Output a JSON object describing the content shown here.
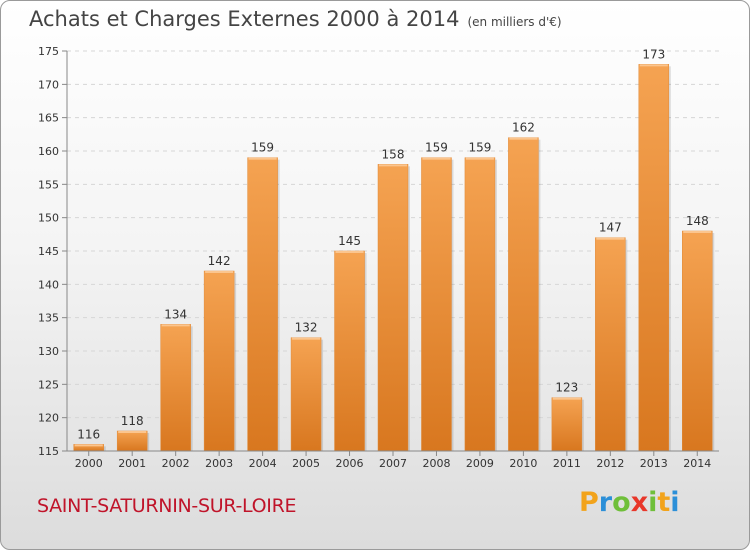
{
  "title": "Achats et Charges Externes 2000 à 2014",
  "subtitle": "(en milliers d'€)",
  "commune": "SAINT-SATURNIN-SUR-LOIRE",
  "logo": {
    "letters": [
      "P",
      "r",
      "o",
      "x",
      "i",
      "t",
      "i"
    ],
    "colors": [
      "#f2a31b",
      "#2b8fd8",
      "#6fbf3a",
      "#e8372a",
      "#6fbf3a",
      "#f2a31b",
      "#2b8fd8"
    ]
  },
  "colors": {
    "bar_light": "#f5a352",
    "bar_dark": "#d8771f",
    "title": "#444444",
    "commune": "#c0142a"
  },
  "chart_data": {
    "type": "bar",
    "categories": [
      "2000",
      "2001",
      "2002",
      "2003",
      "2004",
      "2005",
      "2006",
      "2007",
      "2008",
      "2009",
      "2010",
      "2011",
      "2012",
      "2013",
      "2014"
    ],
    "values": [
      116,
      118,
      134,
      142,
      159,
      132,
      145,
      158,
      159,
      159,
      162,
      123,
      147,
      173,
      148
    ],
    "data_labels": [
      "116",
      "118",
      "134",
      "142",
      "159",
      "132",
      "145",
      "158",
      "159",
      "159",
      "162",
      "123",
      "147",
      "173",
      "148"
    ],
    "title": "Achats et Charges Externes 2000 à 2014",
    "subtitle": "(en milliers d'€)",
    "xlabel": "",
    "ylabel": "",
    "ylim": [
      115,
      175
    ],
    "yticks": [
      115,
      120,
      125,
      130,
      135,
      140,
      145,
      150,
      155,
      160,
      165,
      170,
      175
    ],
    "grid": true,
    "legend": "none"
  }
}
